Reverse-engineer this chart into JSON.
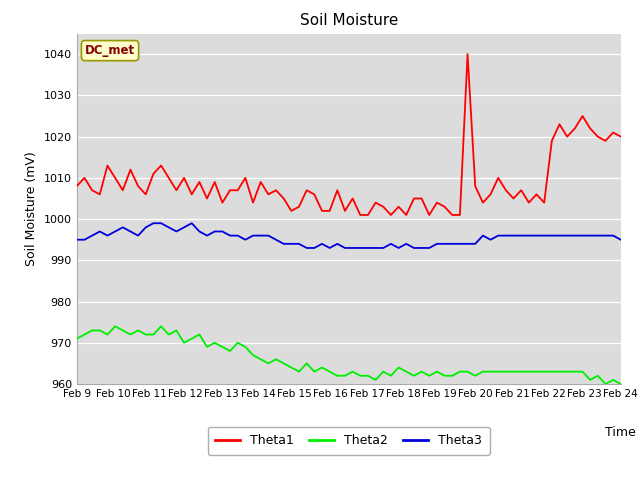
{
  "title": "Soil Moisture",
  "ylabel": "Soil Moisture (mV)",
  "xlabel": "Time",
  "ylim": [
    960,
    1045
  ],
  "yticks": [
    960,
    970,
    980,
    990,
    1000,
    1010,
    1020,
    1030,
    1040
  ],
  "bg_color": "#dcdcdc",
  "annotation_text": "DC_met",
  "annotation_bg": "#ffffcc",
  "annotation_border": "#999900",
  "annotation_text_color": "#880000",
  "theta1_color": "#ff0000",
  "theta2_color": "#00ee00",
  "theta3_color": "#0000dd",
  "legend_labels": [
    "Theta1",
    "Theta2",
    "Theta3"
  ],
  "theta1": [
    1008,
    1010,
    1007,
    1006,
    1013,
    1010,
    1007,
    1012,
    1008,
    1006,
    1011,
    1013,
    1010,
    1007,
    1010,
    1006,
    1009,
    1005,
    1009,
    1004,
    1007,
    1007,
    1010,
    1004,
    1009,
    1006,
    1007,
    1005,
    1002,
    1003,
    1007,
    1006,
    1002,
    1002,
    1007,
    1002,
    1005,
    1001,
    1001,
    1004,
    1003,
    1001,
    1003,
    1001,
    1005,
    1005,
    1001,
    1004,
    1003,
    1001,
    1001,
    1040,
    1008,
    1004,
    1006,
    1010,
    1007,
    1005,
    1007,
    1004,
    1006,
    1004,
    1019,
    1023,
    1020,
    1022,
    1025,
    1022,
    1020,
    1019,
    1021,
    1020
  ],
  "theta2": [
    971,
    972,
    973,
    973,
    972,
    974,
    973,
    972,
    973,
    972,
    972,
    974,
    972,
    973,
    970,
    971,
    972,
    969,
    970,
    969,
    968,
    970,
    969,
    967,
    966,
    965,
    966,
    965,
    964,
    963,
    965,
    963,
    964,
    963,
    962,
    962,
    963,
    962,
    962,
    961,
    963,
    962,
    964,
    963,
    962,
    963,
    962,
    963,
    962,
    962,
    963,
    963,
    962,
    963,
    963,
    963,
    963,
    963,
    963,
    963,
    963,
    963,
    963,
    963,
    963,
    963,
    963,
    961,
    962,
    960,
    961,
    960
  ],
  "theta3": [
    995,
    995,
    996,
    997,
    996,
    997,
    998,
    997,
    996,
    998,
    999,
    999,
    998,
    997,
    998,
    999,
    997,
    996,
    997,
    997,
    996,
    996,
    995,
    996,
    996,
    996,
    995,
    994,
    994,
    994,
    993,
    993,
    994,
    993,
    994,
    993,
    993,
    993,
    993,
    993,
    993,
    994,
    993,
    994,
    993,
    993,
    993,
    994,
    994,
    994,
    994,
    994,
    994,
    996,
    995,
    996,
    996,
    996,
    996,
    996,
    996,
    996,
    996,
    996,
    996,
    996,
    996,
    996,
    996,
    996,
    996,
    995
  ],
  "xtick_labels": [
    "Feb 9",
    "Feb 10",
    "Feb 11",
    "Feb 12",
    "Feb 13",
    "Feb 14",
    "Feb 15",
    "Feb 16",
    "Feb 17",
    "Feb 18",
    "Feb 19",
    "Feb 20",
    "Feb 21",
    "Feb 22",
    "Feb 23",
    "Feb 24"
  ]
}
